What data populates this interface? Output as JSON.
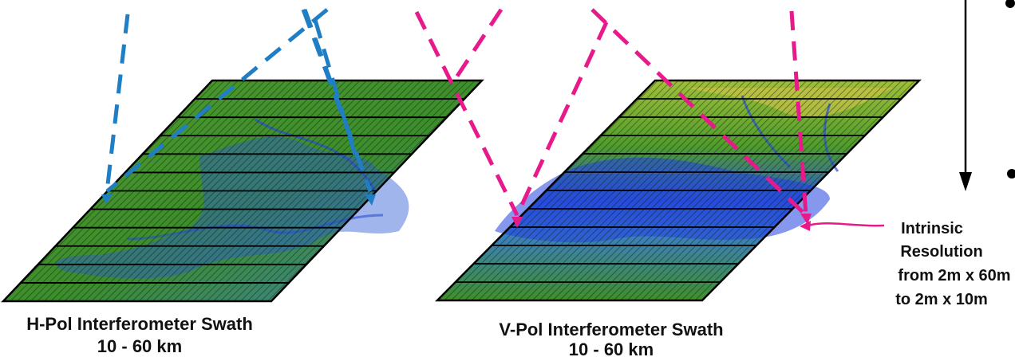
{
  "panels": [
    {
      "title": "H-Pol Interferometer Swath",
      "range": "10 - 60 km"
    },
    {
      "title": "V-Pol Interferometer Swath",
      "range": "10 - 60 km"
    }
  ],
  "annotation": {
    "line1": "Intrinsic",
    "line2": "Resolution",
    "line3": "from 2m x 60m",
    "line4": "to 2m x 10m"
  },
  "colors": {
    "h_beam": "#1f7ec4",
    "v_beam": "#e8198b",
    "terrain_green": "#3f8f2a",
    "terrain_blue": "#2b52d6",
    "terrain_yellow": "#c7c042",
    "pointer": "#e8198b"
  }
}
